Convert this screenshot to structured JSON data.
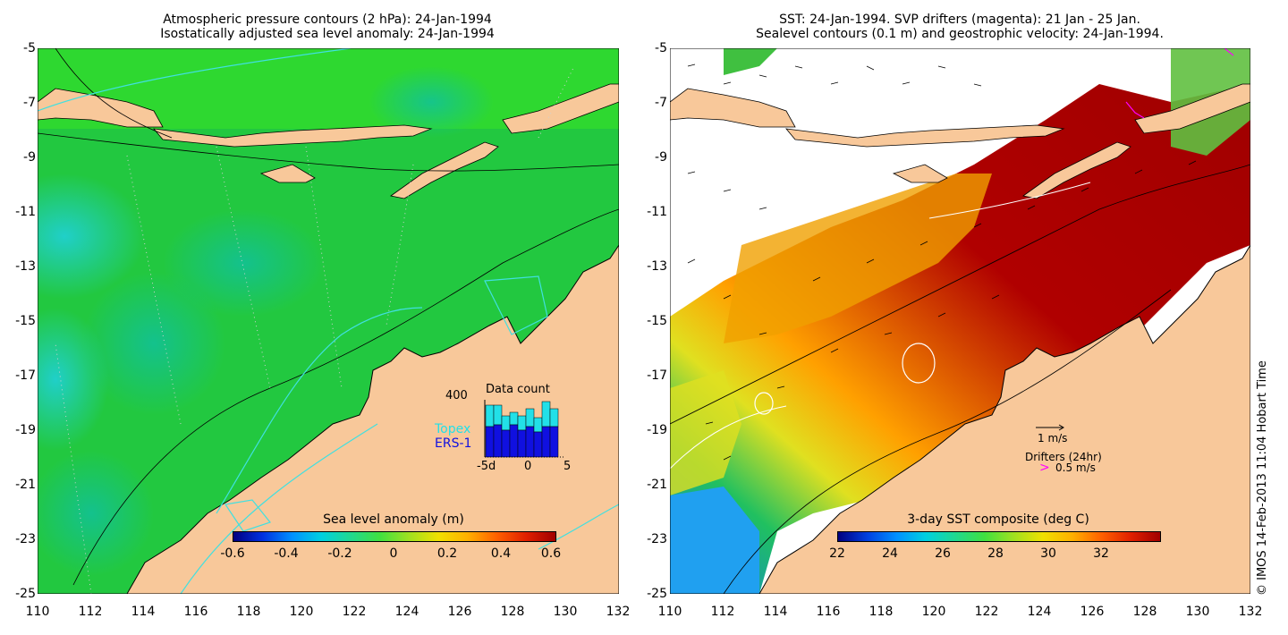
{
  "left_panel": {
    "title_line1": "Atmospheric pressure contours (2 hPa): 24-Jan-1994",
    "title_line2": "Isostatically adjusted sea level anomaly: 24-Jan-1994",
    "colorbar_title": "Sea level anomaly (m)",
    "colorbar_ticks": [
      "-0.6",
      "-0.4",
      "-0.2",
      "0",
      "0.2",
      "0.4",
      "0.6"
    ],
    "inset": {
      "title": "Data count",
      "y_tick": "400",
      "x_ticks": [
        "-5d",
        "0",
        "5"
      ],
      "legend_topex": "Topex",
      "legend_ers": "ERS-1",
      "topex_color": "#22e0e8",
      "ers_color": "#1010e0"
    }
  },
  "right_panel": {
    "title_line1": "SST: 24-Jan-1994. SVP drifters (magenta): 21 Jan - 25 Jan.",
    "title_line2": "Sealevel contours (0.1 m) and geostrophic velocity: 24-Jan-1994.",
    "colorbar_title": "3-day SST composite (deg C)",
    "colorbar_ticks": [
      "22",
      "24",
      "26",
      "28",
      "30",
      "32"
    ],
    "vector_scale_label": "1 m/s",
    "drifters_label": "Drifters (24hr)",
    "drifters_speed": "0.5 m/s",
    "drifter_color": "#ff00ff"
  },
  "axes": {
    "y_ticks": [
      "-5",
      "-7",
      "-9",
      "-11",
      "-13",
      "-15",
      "-17",
      "-19",
      "-21",
      "-23",
      "-25"
    ],
    "x_ticks": [
      "110",
      "112",
      "114",
      "116",
      "118",
      "120",
      "122",
      "124",
      "126",
      "128",
      "130",
      "132"
    ]
  },
  "colors": {
    "land": "#f8c89a",
    "ocean_sla": "#22c840",
    "sst_hot": "#b00000"
  },
  "stamp": "© IMOS 14-Feb-2013 11:04 Hobart Time"
}
